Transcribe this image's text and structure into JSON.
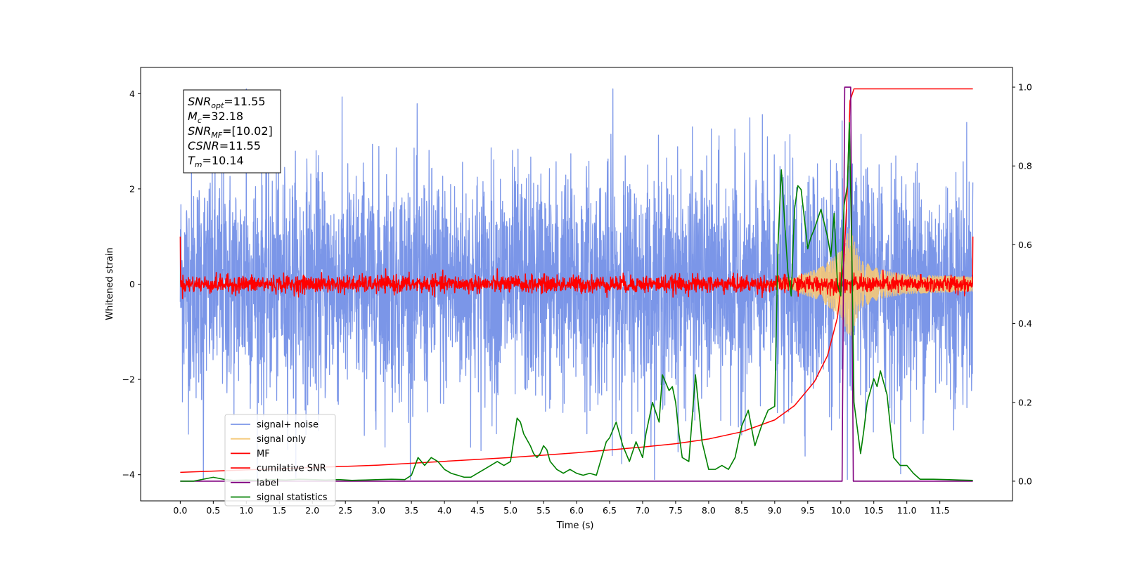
{
  "chart_data": {
    "type": "line",
    "title": "",
    "xlabel": "Time (s)",
    "ylabel": "Whitened strain",
    "y2label": "",
    "xlim": [
      -0.6,
      12.6
    ],
    "ylim": [
      -4.55,
      4.55
    ],
    "y2lim": [
      -0.05,
      1.05
    ],
    "x_ticks": [
      0.0,
      0.5,
      1.0,
      1.5,
      2.0,
      2.5,
      3.0,
      3.5,
      4.0,
      4.5,
      5.0,
      5.5,
      6.0,
      6.5,
      7.0,
      7.5,
      8.0,
      8.5,
      9.0,
      9.5,
      10.0,
      10.5,
      11.0,
      11.5
    ],
    "y_ticks": [
      -4,
      -2,
      0,
      2,
      4
    ],
    "y2_ticks": [
      0.0,
      0.2,
      0.4,
      0.6,
      0.8,
      1.0
    ],
    "grid": false,
    "legend_position": "lower-left",
    "annotation": {
      "lines": [
        {
          "main": "SNR",
          "sub": "opt",
          "value": "=11.55"
        },
        {
          "main": "M",
          "sub": "c",
          "value": "=32.18"
        },
        {
          "main": "SNR",
          "sub": "MF",
          "value": "=[10.02]"
        },
        {
          "main": "CSNR",
          "sub": "",
          "value": "=11.55"
        },
        {
          "main": "T",
          "sub": "m",
          "value": "=10.14"
        }
      ]
    },
    "series": [
      {
        "name": "signal+ noise",
        "axis": "left",
        "color": "#7b96e8",
        "kind": "noise",
        "x_range": [
          0.0,
          12.0
        ],
        "amplitude_std": 1.2,
        "note_peaks": [
          [
            6.55,
            4.1
          ],
          [
            1.0,
            4.1
          ],
          [
            10.1,
            -4.1
          ],
          [
            0.35,
            -4.1
          ]
        ]
      },
      {
        "name": "signal only",
        "axis": "left",
        "color": "#f5c878",
        "kind": "chirp",
        "x_range": [
          8.8,
          12.0
        ],
        "envelope": [
          [
            8.8,
            0.0
          ],
          [
            9.3,
            0.15
          ],
          [
            9.7,
            0.35
          ],
          [
            10.0,
            0.7
          ],
          [
            10.14,
            1.2
          ],
          [
            10.3,
            0.5
          ],
          [
            10.6,
            0.3
          ],
          [
            11.0,
            0.2
          ],
          [
            12.0,
            0.15
          ]
        ]
      },
      {
        "name": "MF",
        "axis": "left",
        "color": "#ff0000",
        "kind": "noise",
        "x_range": [
          0.0,
          12.0
        ],
        "amplitude_std": 0.09,
        "edge_values": [
          [
            0.0,
            1.0
          ],
          [
            12.0,
            1.0
          ]
        ]
      },
      {
        "name": "cumilative SNR",
        "axis": "left",
        "color": "#ff0000",
        "x": [
          0.0,
          1.0,
          2.0,
          3.0,
          4.0,
          5.0,
          6.0,
          7.0,
          7.5,
          8.0,
          8.5,
          9.0,
          9.3,
          9.6,
          9.8,
          9.95,
          10.05,
          10.1,
          10.14,
          10.2,
          12.0
        ],
        "y": [
          -3.95,
          -3.9,
          -3.85,
          -3.8,
          -3.72,
          -3.64,
          -3.54,
          -3.42,
          -3.35,
          -3.25,
          -3.1,
          -2.85,
          -2.55,
          -2.05,
          -1.5,
          -0.7,
          0.5,
          2.0,
          3.85,
          4.1,
          4.1
        ]
      },
      {
        "name": "label",
        "axis": "right",
        "color": "#800080",
        "x": [
          0.0,
          10.02,
          10.06,
          10.15,
          10.19,
          12.0
        ],
        "y": [
          0.0,
          0.0,
          1.0,
          1.0,
          0.0,
          0.0
        ]
      },
      {
        "name": "signal statistics",
        "axis": "right",
        "color": "#008000",
        "x": [
          0.0,
          0.2,
          0.35,
          0.5,
          0.65,
          0.8,
          1.0,
          1.2,
          1.4,
          1.6,
          1.8,
          2.0,
          2.2,
          2.4,
          2.6,
          2.8,
          3.0,
          3.2,
          3.4,
          3.5,
          3.6,
          3.65,
          3.7,
          3.8,
          3.9,
          4.0,
          4.1,
          4.2,
          4.3,
          4.4,
          4.5,
          4.6,
          4.7,
          4.8,
          4.9,
          5.0,
          5.1,
          5.15,
          5.2,
          5.3,
          5.35,
          5.4,
          5.45,
          5.5,
          5.55,
          5.6,
          5.7,
          5.8,
          5.9,
          6.0,
          6.1,
          6.2,
          6.3,
          6.45,
          6.5,
          6.6,
          6.7,
          6.8,
          6.9,
          7.0,
          7.05,
          7.15,
          7.25,
          7.3,
          7.4,
          7.45,
          7.5,
          7.55,
          7.6,
          7.7,
          7.8,
          7.9,
          8.0,
          8.1,
          8.2,
          8.3,
          8.4,
          8.5,
          8.6,
          8.7,
          8.8,
          8.9,
          9.0,
          9.05,
          9.1,
          9.2,
          9.25,
          9.3,
          9.35,
          9.4,
          9.5,
          9.55,
          9.6,
          9.7,
          9.8,
          9.85,
          9.9,
          9.95,
          10.0,
          10.05,
          10.1,
          10.13,
          10.17,
          10.2,
          10.3,
          10.35,
          10.4,
          10.5,
          10.55,
          10.6,
          10.7,
          10.8,
          10.9,
          11.0,
          11.1,
          11.2,
          11.3,
          11.4,
          11.6,
          11.8,
          12.0
        ],
        "y": [
          0.0,
          0.0,
          0.005,
          0.01,
          0.005,
          0.002,
          0.003,
          0.002,
          0.004,
          0.003,
          0.005,
          0.004,
          0.003,
          0.004,
          0.002,
          0.003,
          0.004,
          0.005,
          0.004,
          0.015,
          0.06,
          0.05,
          0.04,
          0.06,
          0.05,
          0.03,
          0.02,
          0.015,
          0.01,
          0.01,
          0.02,
          0.03,
          0.04,
          0.05,
          0.04,
          0.05,
          0.16,
          0.15,
          0.12,
          0.09,
          0.07,
          0.06,
          0.07,
          0.09,
          0.08,
          0.05,
          0.03,
          0.02,
          0.03,
          0.02,
          0.015,
          0.02,
          0.015,
          0.1,
          0.11,
          0.15,
          0.09,
          0.05,
          0.1,
          0.06,
          0.12,
          0.2,
          0.15,
          0.27,
          0.23,
          0.24,
          0.2,
          0.12,
          0.06,
          0.05,
          0.27,
          0.1,
          0.03,
          0.03,
          0.04,
          0.03,
          0.06,
          0.14,
          0.18,
          0.09,
          0.14,
          0.18,
          0.19,
          0.6,
          0.79,
          0.53,
          0.47,
          0.69,
          0.75,
          0.74,
          0.59,
          0.62,
          0.64,
          0.69,
          0.62,
          0.57,
          0.68,
          0.5,
          0.47,
          0.7,
          0.75,
          0.91,
          0.56,
          0.2,
          0.07,
          0.13,
          0.2,
          0.26,
          0.24,
          0.28,
          0.22,
          0.06,
          0.04,
          0.04,
          0.02,
          0.005,
          0.005,
          0.005,
          0.004,
          0.003,
          0.002
        ]
      }
    ]
  }
}
